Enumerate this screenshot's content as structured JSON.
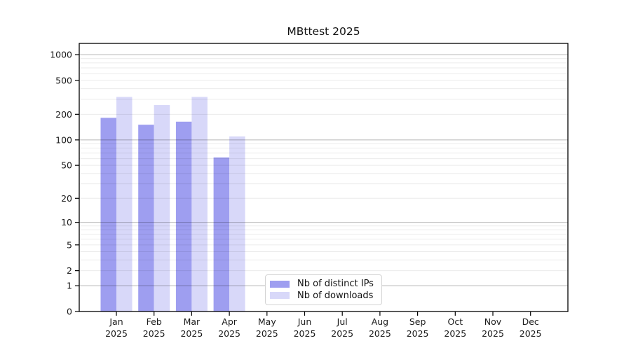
{
  "chart_data": {
    "type": "bar",
    "title": "MBttest 2025",
    "yscale": "log1p",
    "categories": [
      "Jan 2025",
      "Feb 2025",
      "Mar 2025",
      "Apr 2025",
      "May 2025",
      "Jun 2025",
      "Jul 2025",
      "Aug 2025",
      "Sep 2025",
      "Oct 2025",
      "Nov 2025",
      "Dec 2025"
    ],
    "series": [
      {
        "name": "Nb of distinct IPs",
        "color": "#9e9ef0",
        "values": [
          182,
          151,
          164,
          62,
          null,
          null,
          null,
          null,
          null,
          null,
          null,
          null
        ]
      },
      {
        "name": "Nb of downloads",
        "color": "#d8d8f9",
        "values": [
          320,
          257,
          320,
          110,
          null,
          null,
          null,
          null,
          null,
          null,
          null,
          null
        ]
      }
    ],
    "y_ticks": [
      0,
      1,
      2,
      5,
      10,
      20,
      50,
      100,
      200,
      500,
      1000
    ],
    "ylim": [
      0,
      1353
    ],
    "xlabel": "",
    "ylabel": "",
    "grid": "horizontal, light minors with darker decade majors, drawn over bars",
    "legend_position": "inside bottom-center"
  },
  "colors": {
    "background": "#ffffff",
    "axis": "#000000",
    "text": "#1a1a1a",
    "grid_minor": "rgba(0,0,0,0.08)",
    "grid_major": "rgba(0,0,0,0.28)",
    "legend_border": "#d4d4d4"
  }
}
